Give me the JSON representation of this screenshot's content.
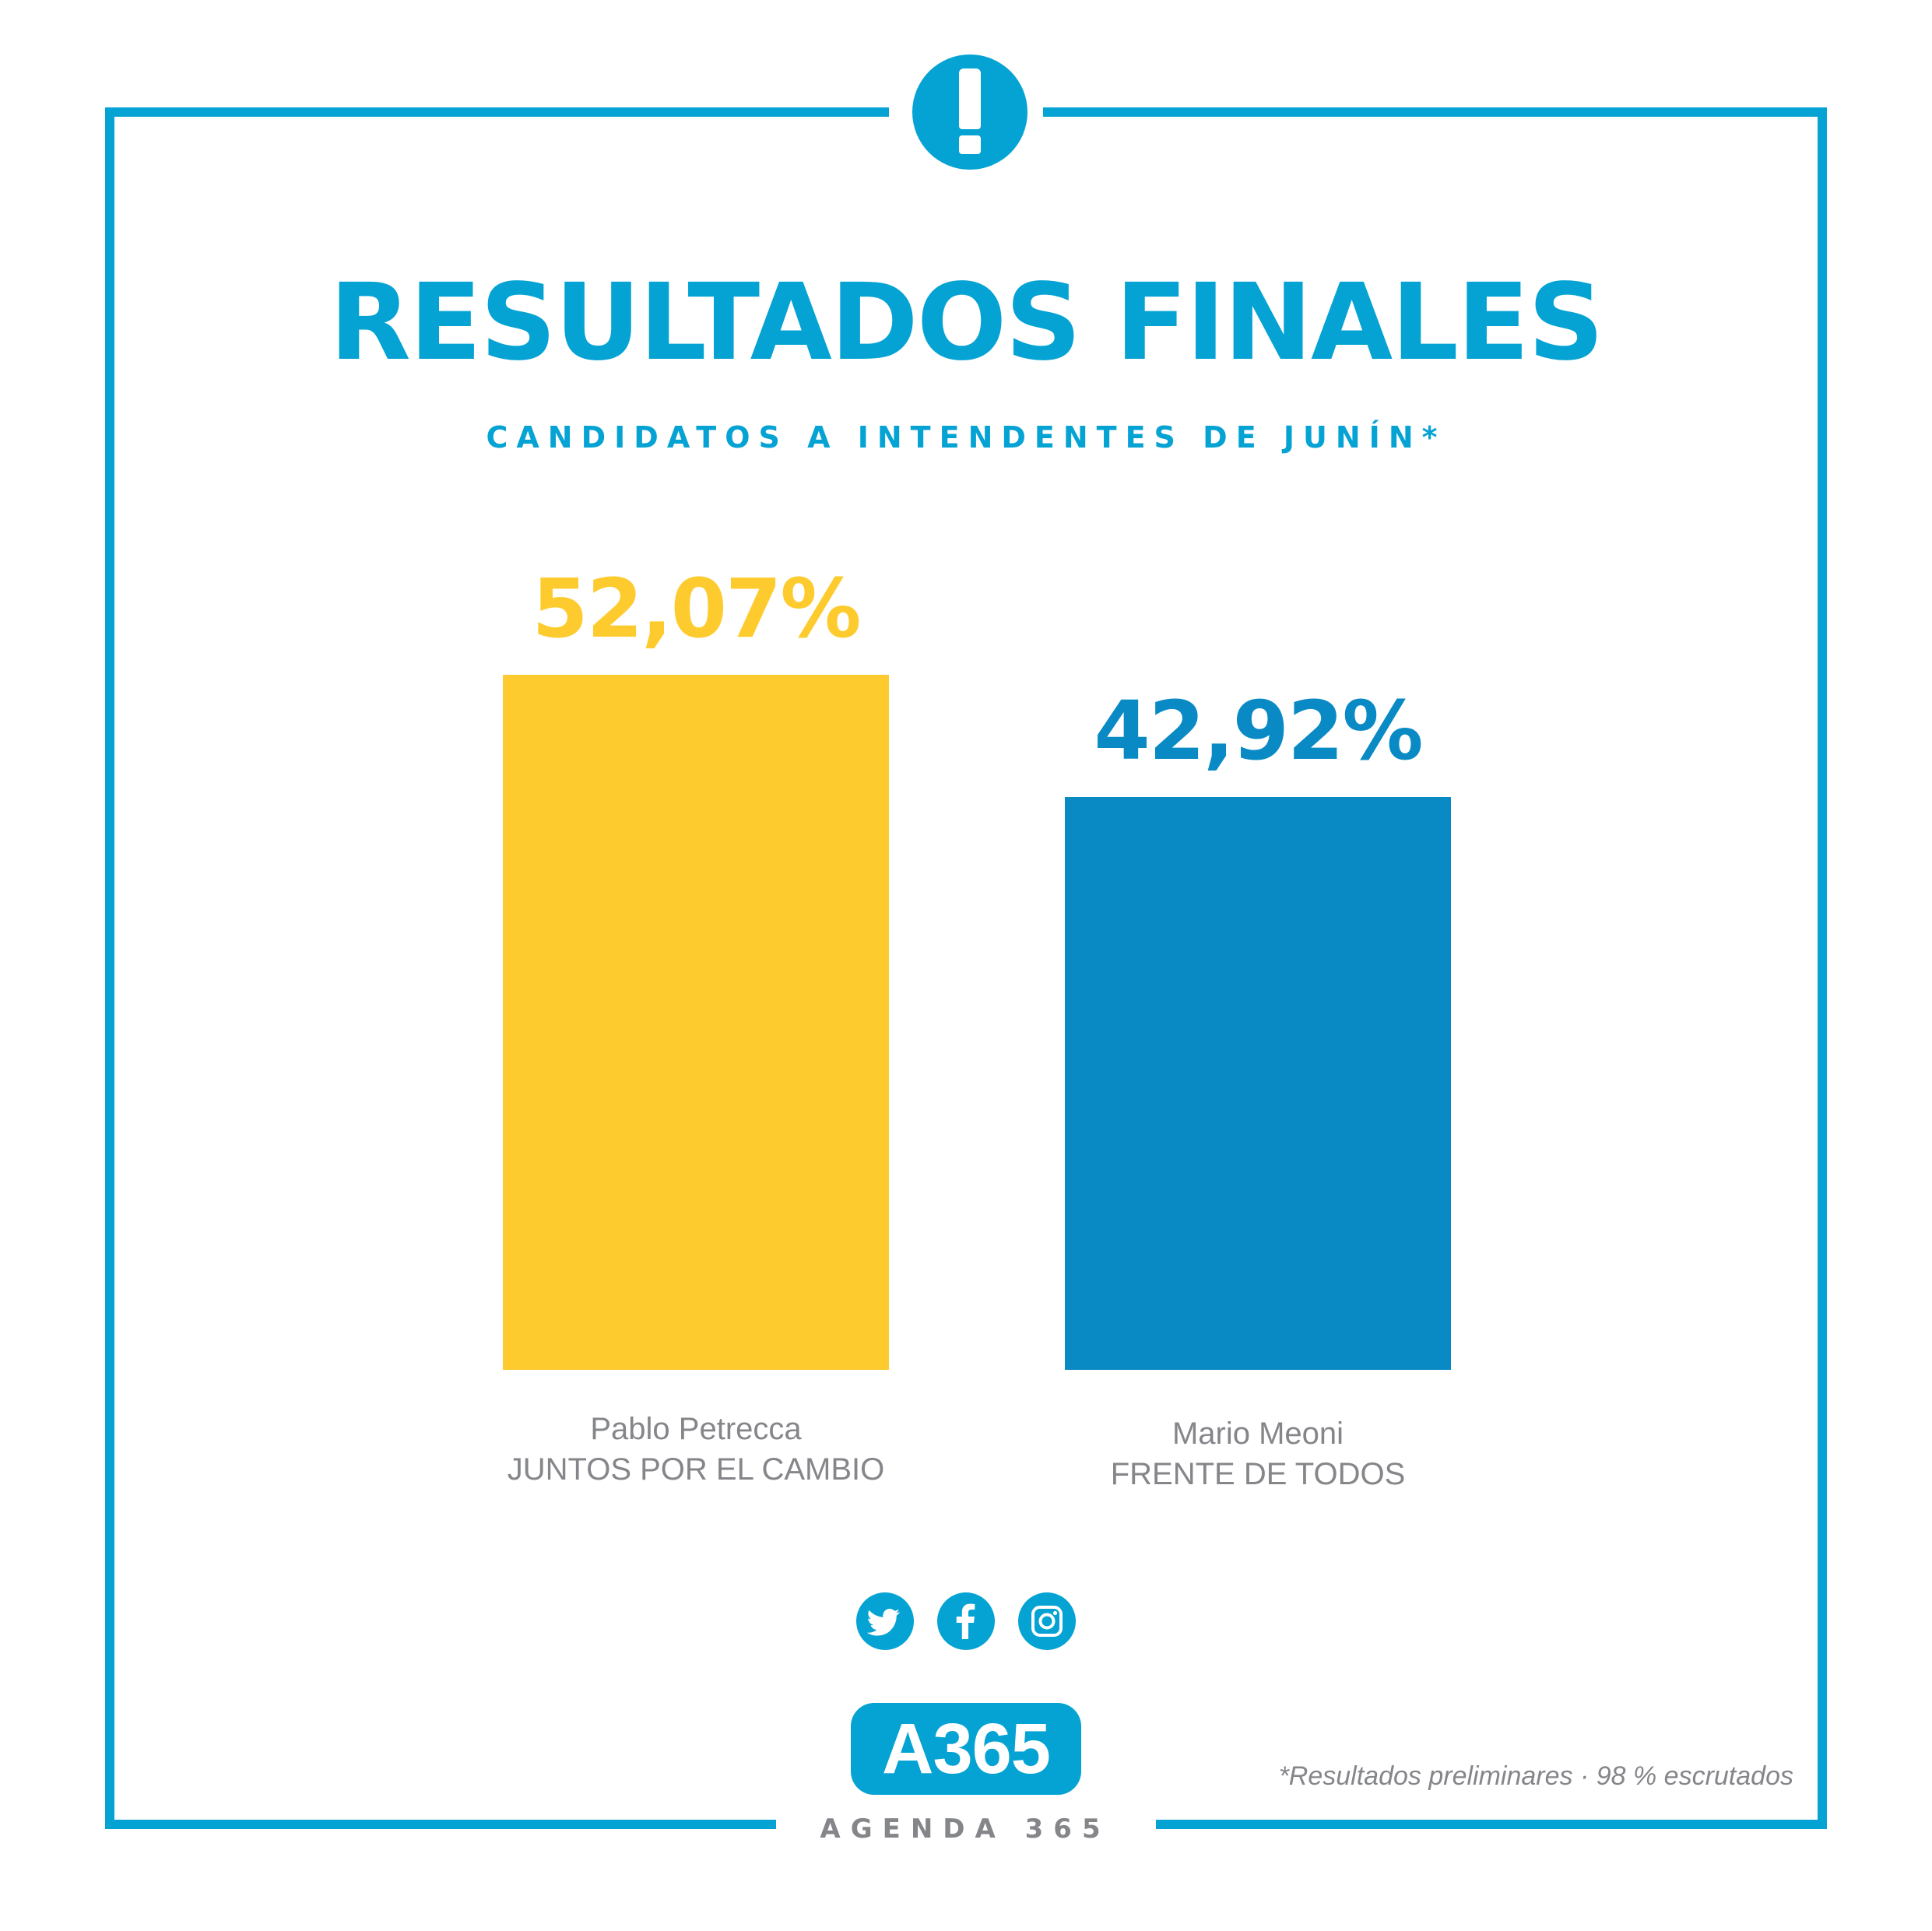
{
  "header": {
    "title": "RESULTADOS FINALES",
    "subtitle": "CANDIDATOS A INTENDENTES DE JUNÍN*"
  },
  "colors": {
    "accent": "#05a3d3",
    "bar_1": "#fecb2e",
    "bar_2": "#098ac4",
    "label_gray": "#85868a"
  },
  "chart_data": {
    "type": "bar",
    "categories": [
      "Pablo Petrecca JUNTOS POR EL CAMBIO",
      "Mario Meoni FRENTE DE TODOS"
    ],
    "values": [
      52.07,
      42.92
    ],
    "value_labels": [
      "52,07%",
      "42,92%"
    ],
    "candidates": [
      {
        "name": "Pablo Petrecca",
        "party": "JUNTOS POR EL CAMBIO"
      },
      {
        "name": "Mario Meoni",
        "party": "FRENTE DE TODOS"
      }
    ],
    "title": "RESULTADOS FINALES",
    "subtitle": "CANDIDATOS A INTENDENTES DE JUNÍN*",
    "xlabel": "",
    "ylabel": "",
    "ylim": [
      0,
      52.07
    ],
    "grid": false,
    "legend": "none"
  },
  "social": {
    "icons": [
      "twitter-icon",
      "facebook-icon",
      "instagram-icon"
    ]
  },
  "brand": {
    "logo_text": "A365",
    "name": "AGENDA 365"
  },
  "footnote": "*Resultados preliminares · 98 % escrutados"
}
